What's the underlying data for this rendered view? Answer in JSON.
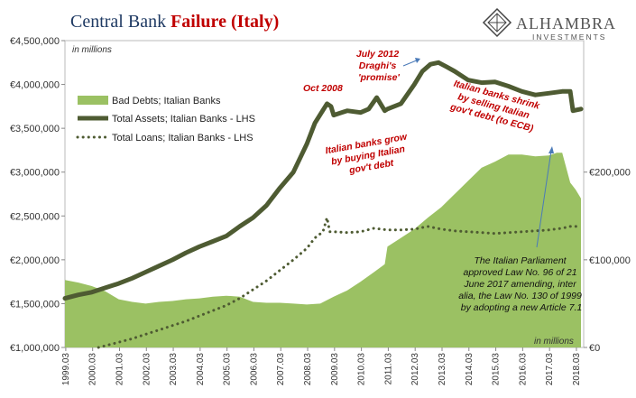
{
  "title": {
    "part1": "Central Bank ",
    "part2": "Failure (Italy)"
  },
  "brand": {
    "name": "ALHAMBRA",
    "sub": "INVESTMENTS"
  },
  "chart_data": {
    "type": "line",
    "left_axis": {
      "unit_label": "in millions",
      "ticks": [
        1000000,
        1500000,
        2000000,
        2500000,
        3000000,
        3500000,
        4000000,
        4500000
      ],
      "tick_labels": [
        "€1,000,000",
        "€1,500,000",
        "€2,000,000",
        "€2,500,000",
        "€3,000,000",
        "€3,500,000",
        "€4,000,000",
        "€4,500,000"
      ],
      "ylim": [
        1000000,
        4500000
      ]
    },
    "right_axis": {
      "unit_label": "in millions",
      "ticks": [
        0,
        100000,
        200000
      ],
      "tick_labels": [
        "€0",
        "€100,000",
        "€200,000"
      ],
      "ylim": [
        0,
        350000
      ]
    },
    "x_axis": {
      "tick_labels": [
        "1999.03",
        "2000.03",
        "2001.03",
        "2002.03",
        "2003.03",
        "2004.03",
        "2005.03",
        "2006.03",
        "2007.03",
        "2008.03",
        "2009.03",
        "2010.03",
        "2011.03",
        "2012.03",
        "2013.03",
        "2014.03",
        "2015.03",
        "2016.03",
        "2017.03",
        "2018.03"
      ],
      "xlim": [
        1999.0,
        2018.3
      ]
    },
    "legend": {
      "placement": "upper-left",
      "items": [
        {
          "label": "Bad Debts; Italian Banks",
          "style": "area",
          "color": "#9bc163"
        },
        {
          "label": "Total Assets; Italian Banks - LHS",
          "style": "line",
          "color": "#4e5b32"
        },
        {
          "label": "Total Loans; Italian Banks - LHS",
          "style": "dotted",
          "color": "#4e5b32"
        }
      ]
    },
    "series": [
      {
        "name": "Bad Debts; Italian Banks",
        "axis": "right",
        "x": [
          1999.0,
          1999.5,
          2000.0,
          2000.5,
          2001.0,
          2001.5,
          2002.0,
          2002.5,
          2003.0,
          2003.5,
          2004.0,
          2004.5,
          2005.0,
          2005.5,
          2006.0,
          2006.5,
          2007.0,
          2007.5,
          2008.0,
          2008.5,
          2009.0,
          2009.5,
          2010.0,
          2010.5,
          2010.9,
          2011.0,
          2011.5,
          2012.0,
          2012.5,
          2013.0,
          2013.5,
          2014.0,
          2014.5,
          2015.0,
          2015.5,
          2016.0,
          2016.5,
          2017.0,
          2017.3,
          2017.5,
          2017.8,
          2018.0,
          2018.2
        ],
        "values": [
          77000,
          74000,
          70000,
          64000,
          55000,
          52000,
          50000,
          52000,
          53000,
          55000,
          56000,
          58000,
          59000,
          58000,
          52000,
          51000,
          51000,
          50000,
          49000,
          50000,
          58000,
          65000,
          75000,
          86000,
          95000,
          115000,
          125000,
          135000,
          148000,
          160000,
          175000,
          190000,
          205000,
          212000,
          220000,
          220000,
          218000,
          219000,
          222000,
          222000,
          188000,
          180000,
          170000
        ]
      },
      {
        "name": "Total Assets; Italian Banks - LHS",
        "axis": "left",
        "x": [
          1999.0,
          1999.5,
          2000.0,
          2000.5,
          2001.0,
          2001.5,
          2002.0,
          2002.5,
          2003.0,
          2003.5,
          2004.0,
          2004.5,
          2005.0,
          2005.5,
          2006.0,
          2006.5,
          2007.0,
          2007.5,
          2008.0,
          2008.3,
          2008.75,
          2008.9,
          2009.0,
          2009.5,
          2010.0,
          2010.3,
          2010.6,
          2010.9,
          2011.0,
          2011.5,
          2012.0,
          2012.3,
          2012.6,
          2012.9,
          2013.2,
          2013.5,
          2014.0,
          2014.5,
          2015.0,
          2015.5,
          2016.0,
          2016.5,
          2017.0,
          2017.5,
          2017.8,
          2017.9,
          2018.2
        ],
        "values": [
          1560000,
          1600000,
          1630000,
          1680000,
          1730000,
          1790000,
          1860000,
          1930000,
          2000000,
          2080000,
          2150000,
          2210000,
          2270000,
          2380000,
          2480000,
          2620000,
          2820000,
          3000000,
          3320000,
          3560000,
          3780000,
          3750000,
          3650000,
          3700000,
          3680000,
          3720000,
          3850000,
          3700000,
          3720000,
          3780000,
          4000000,
          4150000,
          4230000,
          4250000,
          4200000,
          4150000,
          4050000,
          4020000,
          4030000,
          3980000,
          3920000,
          3880000,
          3900000,
          3920000,
          3920000,
          3700000,
          3720000
        ]
      },
      {
        "name": "Total Loans; Italian Banks - LHS",
        "axis": "left",
        "x": [
          2000.25,
          2000.5,
          2001.0,
          2001.5,
          2002.0,
          2002.5,
          2003.0,
          2003.5,
          2004.0,
          2004.5,
          2005.0,
          2005.5,
          2006.0,
          2006.5,
          2007.0,
          2007.5,
          2008.0,
          2008.3,
          2008.6,
          2008.75,
          2008.85,
          2009.0,
          2009.5,
          2010.0,
          2010.5,
          2011.0,
          2011.5,
          2012.0,
          2012.5,
          2013.0,
          2013.5,
          2014.0,
          2014.5,
          2015.0,
          2015.5,
          2016.0,
          2016.5,
          2017.0,
          2017.5,
          2017.8,
          2018.0,
          2018.2
        ],
        "values": [
          1000000,
          1020000,
          1060000,
          1100000,
          1150000,
          1200000,
          1250000,
          1300000,
          1360000,
          1420000,
          1480000,
          1560000,
          1660000,
          1760000,
          1880000,
          2000000,
          2130000,
          2250000,
          2320000,
          2480000,
          2320000,
          2320000,
          2310000,
          2320000,
          2360000,
          2340000,
          2340000,
          2350000,
          2380000,
          2350000,
          2330000,
          2320000,
          2310000,
          2300000,
          2310000,
          2320000,
          2330000,
          2340000,
          2360000,
          2380000,
          2380000,
          2380000
        ]
      }
    ],
    "annotations": [
      {
        "lines": [
          "Oct 2008"
        ],
        "style": "red"
      },
      {
        "lines": [
          "July 2012",
          "Draghi's",
          "'promise'"
        ],
        "style": "red"
      },
      {
        "lines": [
          "Italian banks grow",
          "by buying Italian",
          "gov't debt"
        ],
        "style": "red"
      },
      {
        "lines": [
          "Italian banks shrink",
          "by selling Italian",
          "gov't debt (to ECB)"
        ],
        "style": "red"
      },
      {
        "lines": [
          "The Italian Parliament",
          "approved Law No. 96 of 21",
          "June 2017 amending, inter",
          "alia, the Law No. 130 of 1999",
          "by adopting a new Article 7.1"
        ],
        "style": "black"
      }
    ]
  }
}
